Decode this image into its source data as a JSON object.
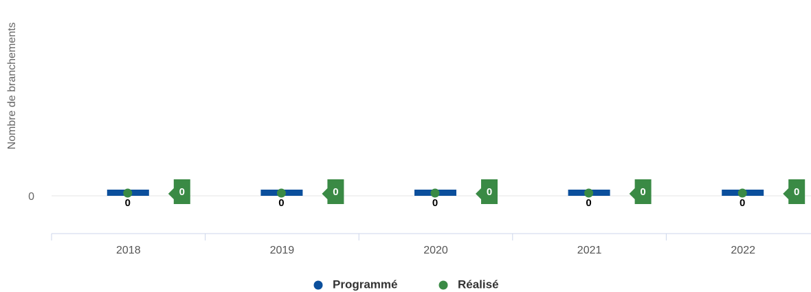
{
  "chart_data": {
    "type": "bar",
    "y_axis_label": "Nombre de branchements",
    "categories": [
      "2018",
      "2019",
      "2020",
      "2021",
      "2022"
    ],
    "series": [
      {
        "name": "Programmé",
        "color": "#0b4f9c",
        "values": [
          0,
          0,
          0,
          0,
          0
        ]
      },
      {
        "name": "Réalisé",
        "color": "#3a8a45",
        "values": [
          0,
          0,
          0,
          0,
          0
        ]
      }
    ],
    "ylim": [
      -0.2,
      1
    ],
    "yticks": [
      0
    ],
    "grid": true
  }
}
